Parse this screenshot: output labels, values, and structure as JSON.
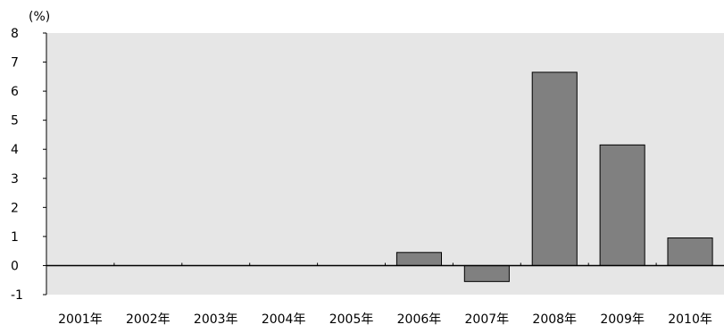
{
  "chart_data": {
    "type": "bar",
    "unit_label": "(%)",
    "categories": [
      "2001年",
      "2002年",
      "2003年",
      "2004年",
      "2005年",
      "2006年",
      "2007年",
      "2008年",
      "2009年",
      "2010年"
    ],
    "values": [
      0,
      0,
      0,
      0,
      0,
      0.45,
      -0.55,
      6.65,
      4.15,
      0.95
    ],
    "ylim": [
      -1,
      8
    ],
    "yticks": [
      "8",
      "7",
      "6",
      "5",
      "4",
      "3",
      "2",
      "1",
      "0",
      "-1"
    ],
    "bar_color": "#808080",
    "plot_background": "#e6e6e6"
  }
}
